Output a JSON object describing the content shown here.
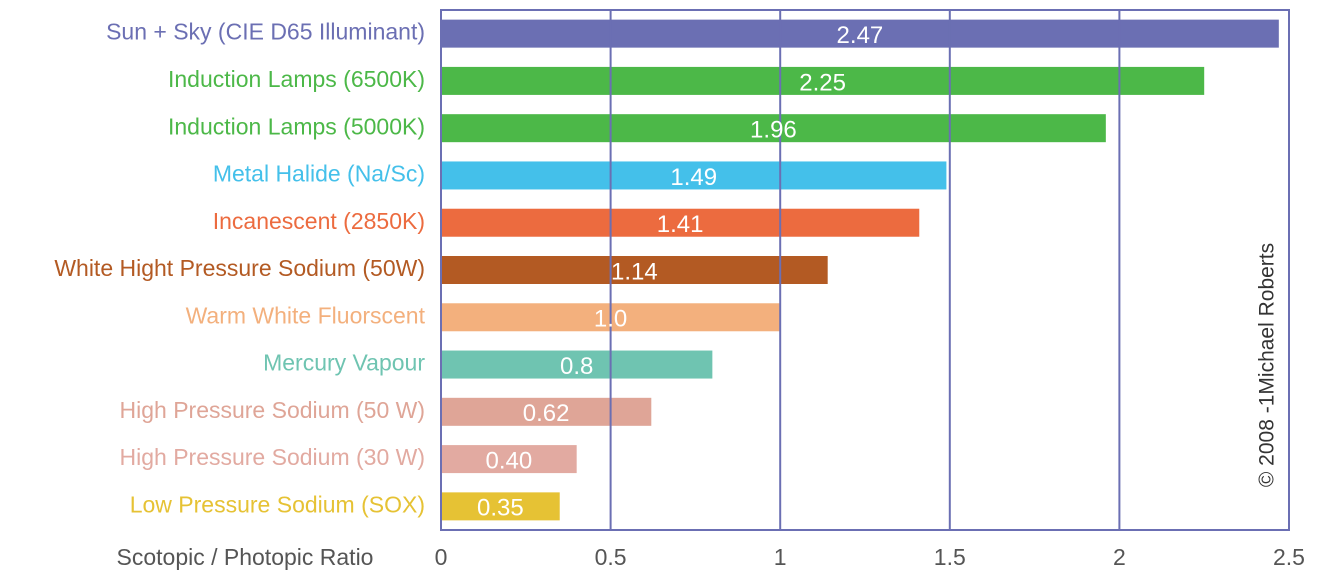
{
  "chart_data": {
    "type": "barh",
    "categories": [
      "Sun + Sky (CIE D65 Illuminant)",
      "Induction Lamps (6500K)",
      "Induction Lamps (5000K)",
      "Metal Halide (Na/Sc)",
      "Incanescent (2850K)",
      "White Hight Pressure Sodium (50W)",
      "Warm White Fluorscent",
      "Mercury Vapour",
      "High Pressure Sodium (50 W)",
      "High Pressure Sodium (30 W)",
      "Low Pressure Sodium (SOX)"
    ],
    "values": [
      2.47,
      2.25,
      1.96,
      1.49,
      1.41,
      1.14,
      1,
      0.8,
      0.62,
      0.4,
      0.35
    ],
    "value_labels": [
      "2.47",
      "2.25",
      "1.96",
      "1.49",
      "1.41",
      "1.14",
      "1.0",
      "0.8",
      "0.62",
      "0.40",
      "0.35"
    ],
    "colors": [
      "#6b6fb3",
      "#4cb848",
      "#4cb848",
      "#44c0ea",
      "#ec6b3f",
      "#b35a23",
      "#f3b07d",
      "#6fc4b1",
      "#dfa597",
      "#e2aaa1",
      "#e6c234"
    ],
    "xlabel": "Scotopic / Photopic Ratio",
    "annotation": "© 2008 -1Michael Roberts",
    "xlim": [
      0,
      2.5
    ],
    "xticks": [
      0,
      0.5,
      1,
      1.5,
      2,
      2.5
    ],
    "grid": true
  }
}
